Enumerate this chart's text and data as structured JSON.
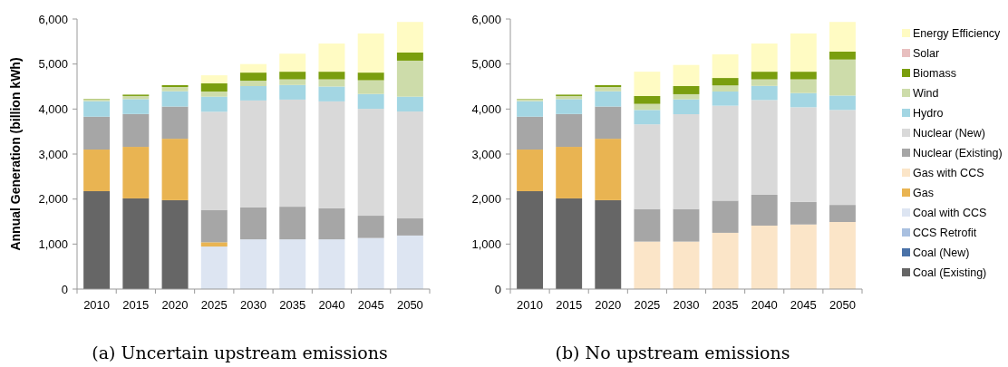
{
  "chart_data": [
    {
      "type": "bar",
      "title": "(a) Uncertain upstream emissions",
      "ylabel": "Annual Generation (billion kWh)",
      "stacked": true,
      "categories": [
        "2010",
        "2015",
        "2020",
        "2025",
        "2030",
        "2035",
        "2040",
        "2045",
        "2050"
      ],
      "ylim": [
        0,
        6000
      ],
      "yticks": [
        {
          "value": 0,
          "label": "0"
        },
        {
          "value": 1000,
          "label": "1,000"
        },
        {
          "value": 2000,
          "label": "2,000"
        },
        {
          "value": 3000,
          "label": "3,000"
        },
        {
          "value": 4000,
          "label": "4,000"
        },
        {
          "value": 5000,
          "label": "5,000"
        },
        {
          "value": 6000,
          "label": "6,000"
        }
      ],
      "legend": "right",
      "series": [
        {
          "name": "Coal (Existing)",
          "color": "#666666",
          "values": [
            2175,
            2015,
            1975,
            0,
            0,
            0,
            0,
            0,
            0
          ]
        },
        {
          "name": "Coal (New)",
          "color": "#4a72a8",
          "values": [
            0,
            0,
            0,
            0,
            0,
            0,
            0,
            0,
            0
          ]
        },
        {
          "name": "CCS Retrofit",
          "color": "#a9c0e0",
          "values": [
            0,
            0,
            0,
            0,
            0,
            0,
            0,
            0,
            0
          ]
        },
        {
          "name": "Coal with CCS",
          "color": "#dde5f2",
          "values": [
            0,
            0,
            0,
            945,
            1105,
            1105,
            1105,
            1135,
            1190
          ]
        },
        {
          "name": "Gas",
          "color": "#e9b452",
          "values": [
            925,
            1145,
            1365,
            95,
            0,
            0,
            0,
            0,
            0
          ]
        },
        {
          "name": "Gas with CCS",
          "color": "#fbe5c8",
          "values": [
            0,
            0,
            0,
            0,
            0,
            0,
            0,
            0,
            0
          ]
        },
        {
          "name": "Nuclear (Existing)",
          "color": "#a6a6a6",
          "values": [
            730,
            730,
            715,
            720,
            715,
            725,
            695,
            495,
            380
          ]
        },
        {
          "name": "Nuclear (New)",
          "color": "#d9d9d9",
          "values": [
            0,
            0,
            0,
            2180,
            2370,
            2380,
            2370,
            2375,
            2375
          ]
        },
        {
          "name": "Hydro",
          "color": "#a3d6e3",
          "values": [
            345,
            330,
            340,
            335,
            320,
            325,
            330,
            330,
            330
          ]
        },
        {
          "name": "Wind",
          "color": "#cddcaa",
          "values": [
            35,
            70,
            95,
            115,
            120,
            125,
            160,
            305,
            800
          ]
        },
        {
          "name": "Biomass",
          "color": "#7a9e0e",
          "values": [
            10,
            30,
            40,
            180,
            180,
            170,
            170,
            170,
            180
          ]
        },
        {
          "name": "Solar",
          "color": "#e8bfbf",
          "values": [
            0,
            0,
            0,
            0,
            0,
            0,
            0,
            0,
            0
          ]
        },
        {
          "name": "Energy Efficiency",
          "color": "#fffbc3",
          "values": [
            0,
            0,
            0,
            180,
            190,
            400,
            625,
            870,
            680
          ]
        }
      ]
    },
    {
      "type": "bar",
      "title": "(b) No upstream emissions",
      "stacked": true,
      "categories": [
        "2010",
        "2015",
        "2020",
        "2025",
        "2030",
        "2035",
        "2040",
        "2045",
        "2050"
      ],
      "ylim": [
        0,
        6000
      ],
      "yticks": [
        {
          "value": 0,
          "label": "0"
        },
        {
          "value": 1000,
          "label": "1,000"
        },
        {
          "value": 2000,
          "label": "2,000"
        },
        {
          "value": 3000,
          "label": "3,000"
        },
        {
          "value": 4000,
          "label": "4,000"
        },
        {
          "value": 5000,
          "label": "5,000"
        },
        {
          "value": 6000,
          "label": "6,000"
        }
      ],
      "series": [
        {
          "color": "#666666",
          "values": [
            2175,
            2015,
            1975,
            0,
            0,
            0,
            0,
            0,
            0
          ]
        },
        {
          "color": "#4a72a8",
          "values": [
            0,
            0,
            0,
            0,
            0,
            0,
            0,
            0,
            0
          ]
        },
        {
          "color": "#a9c0e0",
          "values": [
            0,
            0,
            0,
            0,
            0,
            0,
            0,
            0,
            0
          ]
        },
        {
          "color": "#dde5f2",
          "values": [
            0,
            0,
            0,
            0,
            0,
            0,
            0,
            0,
            0
          ]
        },
        {
          "color": "#e9b452",
          "values": [
            925,
            1145,
            1365,
            0,
            0,
            0,
            0,
            0,
            0
          ]
        },
        {
          "color": "#fbe5c8",
          "values": [
            0,
            0,
            0,
            1055,
            1055,
            1250,
            1410,
            1435,
            1490
          ]
        },
        {
          "color": "#a6a6a6",
          "values": [
            730,
            730,
            715,
            725,
            725,
            715,
            685,
            500,
            380
          ]
        },
        {
          "color": "#d9d9d9",
          "values": [
            0,
            0,
            0,
            1880,
            2105,
            2110,
            2105,
            2105,
            2110
          ]
        },
        {
          "color": "#a3d6e3",
          "values": [
            345,
            330,
            340,
            320,
            330,
            315,
            315,
            315,
            320
          ]
        },
        {
          "color": "#cddcaa",
          "values": [
            35,
            70,
            95,
            135,
            115,
            135,
            145,
            305,
            800
          ]
        },
        {
          "color": "#7a9e0e",
          "values": [
            10,
            30,
            40,
            175,
            180,
            165,
            170,
            170,
            175
          ]
        },
        {
          "color": "#e8bfbf",
          "values": [
            0,
            0,
            0,
            0,
            0,
            0,
            0,
            0,
            0
          ]
        },
        {
          "color": "#fffbc3",
          "values": [
            0,
            0,
            0,
            540,
            470,
            525,
            625,
            850,
            660
          ]
        }
      ]
    }
  ]
}
